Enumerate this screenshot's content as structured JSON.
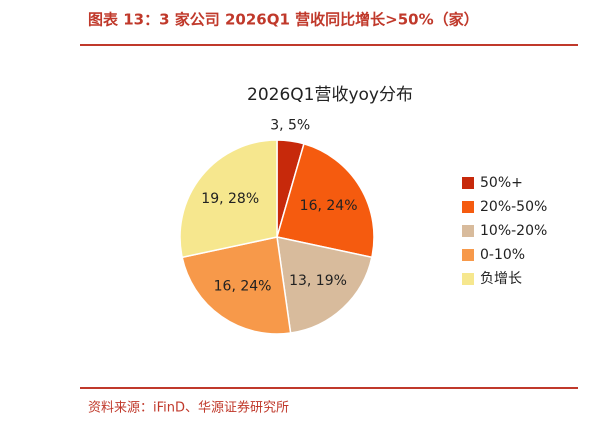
{
  "caption": "图表 13：3 家公司 2026Q1 营收同比增长>50%（家）",
  "source": "资料来源：iFinD、华源证券研究所",
  "chart_data": {
    "type": "pie",
    "title": "2026Q1营收yoy分布",
    "categories": [
      "50%+",
      "20%-50%",
      "10%-20%",
      "0-10%",
      "负增长"
    ],
    "values": [
      3,
      16,
      13,
      16,
      19
    ],
    "value_labels": [
      "3, 5%",
      "16, 24%",
      "13, 19%",
      "16, 24%",
      "19, 28%"
    ],
    "colors": [
      "#c7290b",
      "#f55b0f",
      "#d8bb9c",
      "#f7994a",
      "#f6e78e"
    ],
    "legend": "right"
  }
}
